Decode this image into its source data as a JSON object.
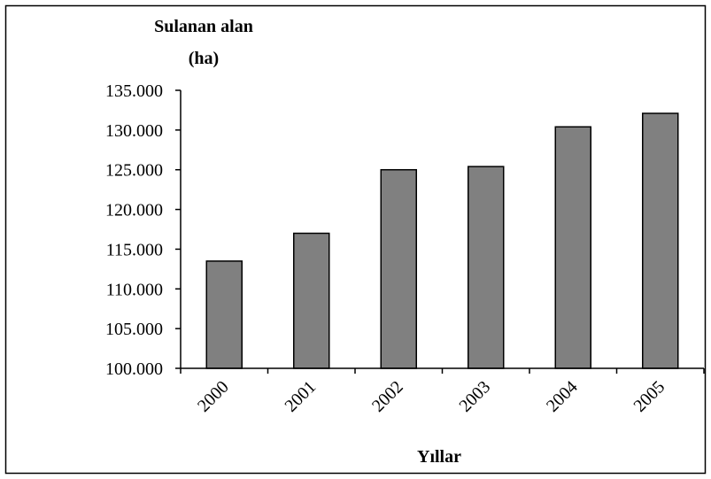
{
  "chart_data": {
    "type": "bar",
    "ylabel": [
      "Sulanan alan",
      "(ha)"
    ],
    "xlabel": "Yıllar",
    "categories": [
      "2000",
      "2001",
      "2002",
      "2003",
      "2004",
      "2005"
    ],
    "values": [
      113500,
      117000,
      125000,
      125400,
      130400,
      132100
    ],
    "color": "#808080",
    "ylim": [
      100000,
      135000
    ],
    "yticks": [
      {
        "value": 100000,
        "label": "100.000"
      },
      {
        "value": 105000,
        "label": "105.000"
      },
      {
        "value": 110000,
        "label": "110.000"
      },
      {
        "value": 115000,
        "label": "115.000"
      },
      {
        "value": 120000,
        "label": "120.000"
      },
      {
        "value": 125000,
        "label": "125.000"
      },
      {
        "value": 130000,
        "label": "130.000"
      },
      {
        "value": 135000,
        "label": "135.000"
      }
    ],
    "grid": false
  }
}
